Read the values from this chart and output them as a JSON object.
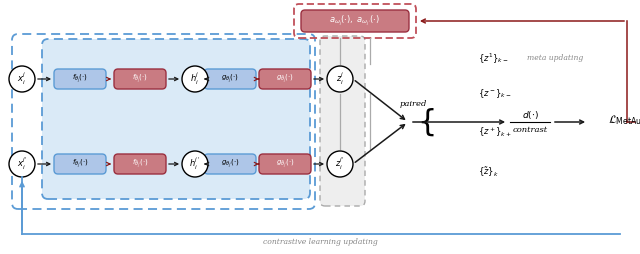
{
  "fig_width": 6.4,
  "fig_height": 2.54,
  "dpi": 100,
  "bg_color": "#ffffff",
  "blue_box_color": "#aec6e8",
  "blue_box_edge": "#5b9bd5",
  "red_box_color": "#c97b82",
  "red_box_edge": "#9b3040",
  "light_blue_bg": "#daeaf7",
  "arrow_black": "#1a1a1a",
  "arrow_red": "#8b1a1a",
  "arrow_blue": "#5b9bd5",
  "gray_edge": "#999999",
  "red_dashed_border": "#c0505a",
  "labels": {
    "x1": "$x_i^{j}$",
    "x2": "$x_i^{j'}$",
    "h1": "$h_i^{j}$",
    "h2": "$h_i^{j'}$",
    "z1": "$z_i^{j}$",
    "z2": "$z_i^{j'}$",
    "f_blue_j": "$f_{\\theta_j}(\\cdot)$",
    "f_red_j": "$f_{\\hat{\\theta}_j}(\\cdot)$",
    "g_blue_j": "$g_{\\theta_j}(\\cdot)$",
    "g_red_j": "$g_{\\hat{\\theta}_j}(\\cdot)$",
    "f_blue_jp": "$f_{\\theta_{j'}}(\\cdot)$",
    "f_red_jp": "$f_{\\hat{\\theta}_{j'}}(\\cdot)$",
    "g_blue_jp": "$g_{\\theta_{j'}}(\\cdot)$",
    "g_red_jp": "$g_{\\hat{\\theta}_{j'}}(\\cdot)$",
    "aug_box": "$a_{\\omega_j}(\\cdot),\\ a_{\\omega_{j'}}(\\cdot)$",
    "paired": "paired",
    "d_frac_top": "$d(\\cdot)$",
    "d_frac_bot": "contrast",
    "L_metaug": "$\\mathcal{L}_{\\mathrm{MetAug}}$",
    "z1_neg": "$\\{z^1\\}_{k-}$",
    "z_neg": "$\\{z^-\\}_{k-}$",
    "z_pos": "$\\{z^+\\}_{k+}$",
    "z_k": "$\\{\\tilde{z}\\}_{k}$",
    "meta_updating": "meta updating",
    "contrastive_updating": "contrastive learning updating"
  }
}
